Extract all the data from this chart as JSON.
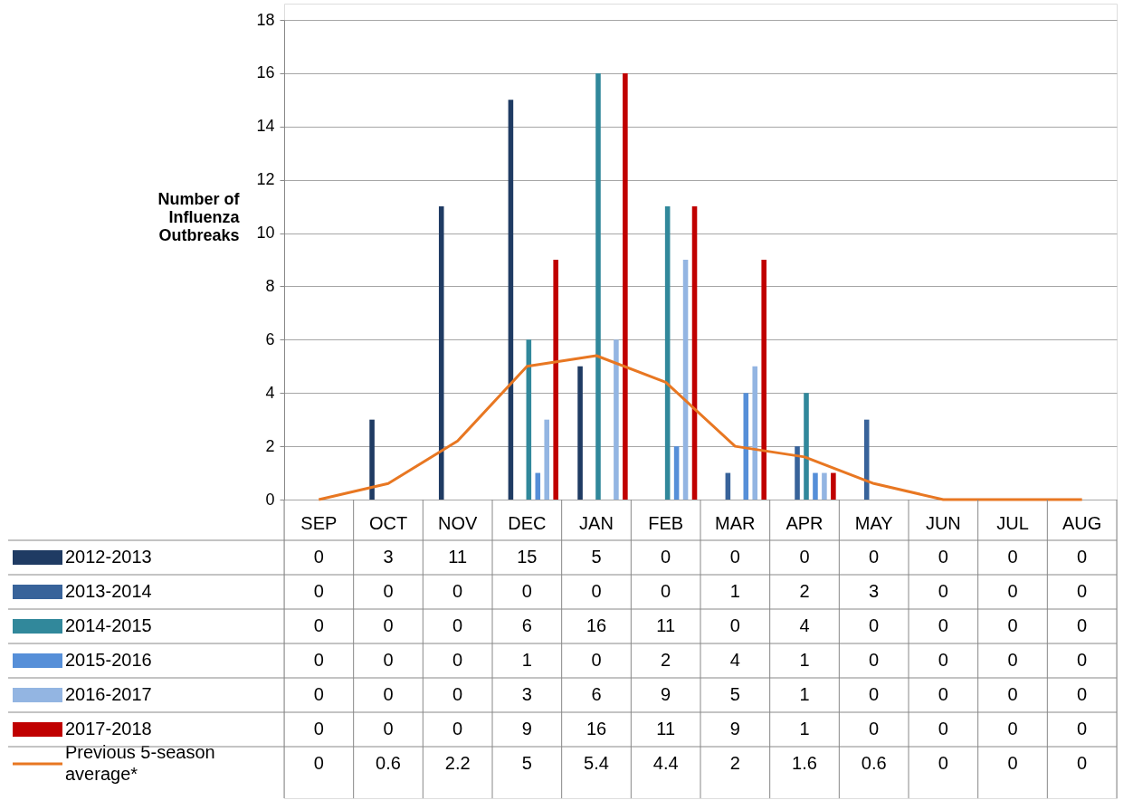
{
  "chart_data": {
    "type": "bar",
    "ylabel": "Number of Influenza Outbreaks",
    "categories": [
      "SEP",
      "OCT",
      "NOV",
      "DEC",
      "JAN",
      "FEB",
      "MAR",
      "APR",
      "MAY",
      "JUN",
      "JUL",
      "AUG"
    ],
    "series": [
      {
        "name": "2012-2013",
        "color": "#1f3b63",
        "values": [
          0,
          3,
          11,
          15,
          5,
          0,
          0,
          0,
          0,
          0,
          0,
          0
        ]
      },
      {
        "name": "2013-2014",
        "color": "#38639a",
        "values": [
          0,
          0,
          0,
          0,
          0,
          0,
          1,
          2,
          3,
          0,
          0,
          0
        ]
      },
      {
        "name": "2014-2015",
        "color": "#31889b",
        "values": [
          0,
          0,
          0,
          6,
          16,
          11,
          0,
          4,
          0,
          0,
          0,
          0
        ]
      },
      {
        "name": "2015-2016",
        "color": "#568fd8",
        "values": [
          0,
          0,
          0,
          1,
          0,
          2,
          4,
          1,
          0,
          0,
          0,
          0
        ]
      },
      {
        "name": "2016-2017",
        "color": "#93b5e2",
        "values": [
          0,
          0,
          0,
          3,
          6,
          9,
          5,
          1,
          0,
          0,
          0,
          0
        ]
      },
      {
        "name": "2017-2018",
        "color": "#c00000",
        "values": [
          0,
          0,
          0,
          9,
          16,
          11,
          9,
          1,
          0,
          0,
          0,
          0
        ]
      },
      {
        "name": "Previous 5-season average*",
        "type": "line",
        "color": "#e87722",
        "values": [
          0,
          0.6,
          2.2,
          5,
          5.4,
          4.4,
          2,
          1.6,
          0.6,
          0,
          0,
          0
        ]
      }
    ],
    "ylim": [
      0,
      18
    ],
    "yticks": [
      0,
      2,
      4,
      6,
      8,
      10,
      12,
      14,
      16,
      18
    ],
    "grid": "y",
    "legend": "bottom left",
    "data_labels": true,
    "line_style": "solid",
    "marker": "none"
  }
}
